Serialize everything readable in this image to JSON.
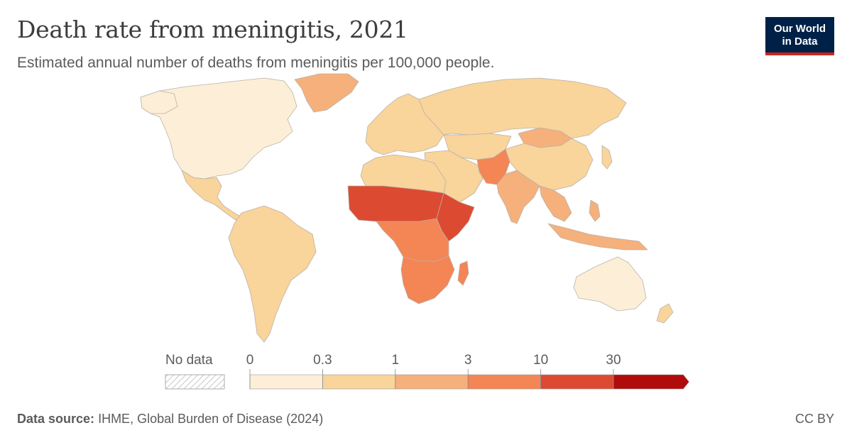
{
  "header": {
    "title": "Death rate from meningitis, 2021",
    "subtitle": "Estimated annual number of deaths from meningitis per 100,000 people."
  },
  "logo": {
    "line1": "Our World",
    "line2": "in Data"
  },
  "legend": {
    "no_data_label": "No data",
    "ticks": [
      "0",
      "0.3",
      "1",
      "3",
      "10",
      "30"
    ],
    "bins": [
      {
        "range": "0–0.3",
        "color": "#fdeed8"
      },
      {
        "range": "0.3–1",
        "color": "#f9d49b"
      },
      {
        "range": "1–3",
        "color": "#f6b07c"
      },
      {
        "range": "3–10",
        "color": "#f48555"
      },
      {
        "range": "10–30",
        "color": "#dd4a32"
      },
      {
        "range": ">30",
        "color": "#b10c0c"
      }
    ]
  },
  "regions": {
    "north_america": "0–0.3",
    "greenland": "1–3",
    "central_america": "0.3–1",
    "south_america": "0.3–1",
    "europe": "0.3–1",
    "russia": "0.3–1",
    "central_asia": "0.3–1",
    "mongolia": "1–3",
    "china": "0.3–1",
    "middle_east": "0.3–1",
    "pakistan_afghanistan": "3–10",
    "india": "1–3",
    "southeast_asia": "1–3",
    "north_africa": "0.3–1",
    "sahel": "10–30",
    "east_africa": "10–30",
    "central_africa": "3–10",
    "southern_africa": "3–10",
    "madagascar": "3–10",
    "australia": "0–0.3",
    "new_zealand": "0.3–1",
    "japan": "0.3–1"
  },
  "footer": {
    "source_label": "Data source:",
    "source_text": "IHME, Global Burden of Disease (2024)",
    "license": "CC BY"
  }
}
